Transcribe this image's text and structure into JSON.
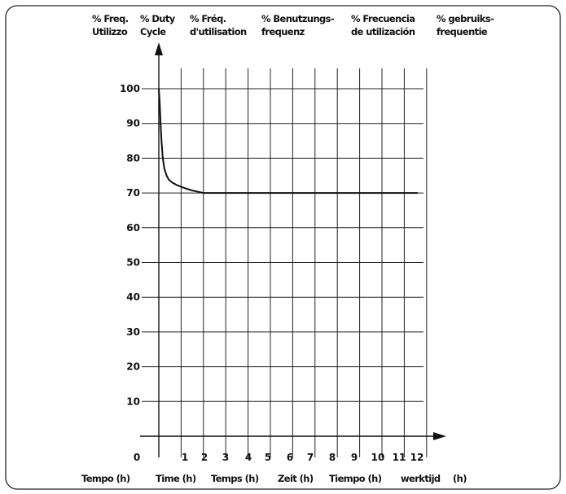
{
  "chart_data": {
    "type": "line",
    "column_headers": [
      [
        "% Freq.",
        "Utilizzo"
      ],
      [
        "% Duty",
        "Cycle"
      ],
      [
        "% Fréq.",
        "d'utilisation"
      ],
      [
        "% Benutzungs-",
        "frequenz"
      ],
      [
        "% Frecuencia",
        "de utilización"
      ],
      [
        "% gebruiks-",
        "frequentie"
      ]
    ],
    "y_ticks": [
      10,
      20,
      30,
      40,
      50,
      60,
      70,
      80,
      90,
      100
    ],
    "x_ticks": [
      0,
      1,
      2,
      3,
      4,
      5,
      6,
      7,
      8,
      9,
      10,
      11,
      12
    ],
    "x_labels": [
      "Tempo (h)",
      "Time (h)",
      "Temps (h)",
      "Zeit (h)",
      "Tiempo (h)",
      "werktijd",
      "(h)"
    ],
    "xlim": [
      0,
      12
    ],
    "ylim": [
      0,
      100
    ],
    "grid": true,
    "series": [
      {
        "x": [
          0,
          0.04,
          0.08,
          0.12,
          0.18,
          0.25,
          0.35,
          0.45,
          0.6,
          0.8,
          1.0,
          1.2,
          1.5,
          1.8,
          2.0,
          2.5,
          3,
          4,
          5,
          6,
          7,
          8,
          9,
          10,
          11,
          11.6
        ],
        "y": [
          100,
          96,
          90,
          85,
          80,
          77,
          75,
          73.8,
          73,
          72.3,
          71.8,
          71.3,
          70.7,
          70.3,
          70,
          70,
          70,
          70,
          70,
          70,
          70,
          70,
          70,
          70,
          70,
          70
        ]
      }
    ]
  }
}
